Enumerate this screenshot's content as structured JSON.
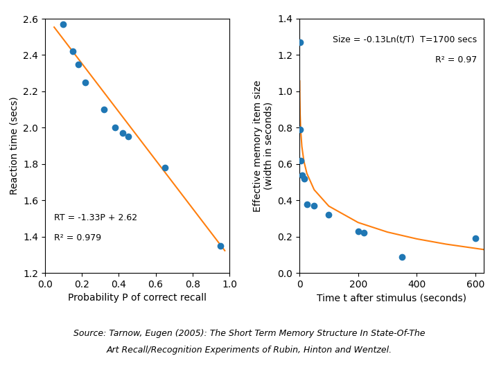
{
  "chart_data": [
    {
      "type": "scatter",
      "x_label": "Probability P of correct recall",
      "y_label": "Reaction time (secs)",
      "annotations": [
        "RT = -1.33P + 2.62",
        "R² = 0.979"
      ],
      "series": [
        {
          "type": "scatter",
          "marker": "o",
          "x": [
            0.1,
            0.15,
            0.18,
            0.22,
            0.32,
            0.38,
            0.42,
            0.45,
            0.65,
            0.95
          ],
          "values": [
            2.57,
            2.42,
            2.35,
            2.25,
            2.1,
            2.0,
            1.97,
            1.95,
            1.78,
            1.35
          ]
        },
        {
          "type": "line",
          "line_style": "solid",
          "x": [
            0.05,
            0.975
          ],
          "values": [
            2.5535,
            1.32325
          ]
        }
      ],
      "xlim": [
        0,
        1.0
      ],
      "ylim": [
        1.2,
        2.6
      ],
      "xticks": [
        {
          "value": 0,
          "label": "0.0"
        },
        0.2,
        0.4,
        0.6,
        0.8,
        {
          "value": 1,
          "label": "1.0"
        }
      ],
      "yticks": [
        1.2,
        1.4,
        1.6,
        1.8,
        2.0,
        2.2,
        2.4,
        2.6
      ],
      "grid": false
    },
    {
      "type": "scatter",
      "x_label": "Time t after stimulus (seconds)",
      "y_label": "Effective memory item size\n(width in seconds)",
      "annotations": [
        "Size = -0.13Ln(t/T)  T=1700 secs",
        "R² = 0.97"
      ],
      "series": [
        {
          "type": "scatter",
          "marker": "o",
          "x": [
            1,
            2,
            4,
            8,
            15,
            25,
            50,
            100,
            200,
            220,
            350,
            600
          ],
          "values": [
            1.27,
            0.79,
            0.62,
            0.54,
            0.52,
            0.38,
            0.37,
            0.32,
            0.23,
            0.22,
            0.09,
            0.19
          ]
        },
        {
          "type": "line",
          "line_style": "solid",
          "x": [
            0.5,
            1,
            2,
            4,
            8,
            15,
            25,
            50,
            100,
            200,
            300,
            400,
            500,
            630
          ],
          "values": [
            1.0571,
            0.96699,
            0.87688,
            0.78677,
            0.69666,
            0.61494,
            0.54854,
            0.45843,
            0.36832,
            0.27821,
            0.2255,
            0.1881,
            0.15909,
            0.12905
          ]
        }
      ],
      "xlim": [
        0,
        630
      ],
      "ylim": [
        0,
        1.4
      ],
      "xticks": [
        0,
        200,
        400,
        600
      ],
      "yticks": [
        {
          "value": 0,
          "label": "0.0"
        },
        0.2,
        0.4,
        0.6,
        0.8,
        1.0,
        1.2,
        1.4
      ],
      "grid": false
    }
  ],
  "source": [
    "Source: Tarnow, Eugen (2005): The Short Term Memory Structure In State-Of-The",
    "Art Recall/Recognition Experiments of Rubin, Hinton and Wentzel."
  ]
}
